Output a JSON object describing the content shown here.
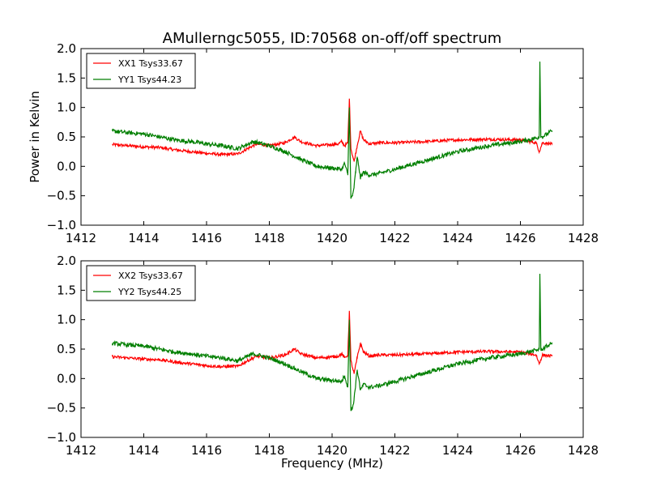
{
  "title": "AMullerngc5055, ID:70568 on-off/off spectrum",
  "colors": {
    "xx": "#ff0000",
    "yy": "#007f00"
  },
  "chart_data": [
    {
      "type": "line",
      "ylabel": "Power in Kelvin",
      "xlabel": "",
      "xlim": [
        1412,
        1428
      ],
      "ylim": [
        -1.0,
        2.0
      ],
      "xticks": [
        "1412",
        "1414",
        "1416",
        "1418",
        "1420",
        "1422",
        "1424",
        "1426",
        "1428"
      ],
      "yticks": [
        "2.0",
        "1.5",
        "1.0",
        "0.5",
        "0.0",
        "−0.5",
        "−1.0"
      ],
      "legend_position": "top-left",
      "series": [
        {
          "name": "XX1 Tsys33.67",
          "color": "#ff0000",
          "x": [
            1413.0,
            1413.5,
            1414.0,
            1414.5,
            1415.0,
            1415.5,
            1416.0,
            1416.5,
            1417.0,
            1417.3,
            1417.6,
            1418.0,
            1418.5,
            1418.8,
            1419.0,
            1419.5,
            1420.0,
            1420.2,
            1420.3,
            1420.4,
            1420.5,
            1420.55,
            1420.6,
            1420.7,
            1420.8,
            1420.9,
            1421.0,
            1421.2,
            1421.5,
            1422.0,
            1423.0,
            1424.0,
            1425.0,
            1426.0,
            1426.5,
            1426.6,
            1426.7,
            1427.0
          ],
          "y": [
            0.37,
            0.35,
            0.33,
            0.32,
            0.28,
            0.25,
            0.22,
            0.2,
            0.21,
            0.3,
            0.38,
            0.35,
            0.4,
            0.5,
            0.42,
            0.35,
            0.37,
            0.38,
            0.42,
            0.35,
            0.4,
            1.15,
            0.3,
            0.08,
            0.35,
            0.6,
            0.45,
            0.38,
            0.4,
            0.4,
            0.42,
            0.45,
            0.46,
            0.45,
            0.4,
            0.25,
            0.4,
            0.38
          ]
        },
        {
          "name": "YY1 Tsys44.23",
          "color": "#007f00",
          "x": [
            1413.0,
            1413.5,
            1414.0,
            1414.5,
            1415.0,
            1415.5,
            1416.0,
            1416.5,
            1417.0,
            1417.2,
            1417.5,
            1418.0,
            1418.5,
            1419.0,
            1419.5,
            1420.0,
            1420.3,
            1420.4,
            1420.5,
            1420.55,
            1420.6,
            1420.65,
            1420.7,
            1420.75,
            1420.8,
            1420.85,
            1420.9,
            1421.0,
            1421.2,
            1421.5,
            1422.0,
            1423.0,
            1424.0,
            1425.0,
            1426.0,
            1426.5,
            1426.6,
            1426.62,
            1426.65,
            1426.7,
            1427.0
          ],
          "y": [
            0.6,
            0.57,
            0.55,
            0.5,
            0.45,
            0.42,
            0.38,
            0.35,
            0.3,
            0.35,
            0.42,
            0.35,
            0.25,
            0.12,
            0.0,
            -0.03,
            -0.05,
            0.05,
            -0.15,
            1.0,
            -0.55,
            -0.5,
            -0.35,
            -0.1,
            0.15,
            0.0,
            -0.2,
            -0.1,
            -0.15,
            -0.12,
            -0.05,
            0.1,
            0.25,
            0.35,
            0.42,
            0.48,
            0.5,
            1.78,
            0.5,
            0.5,
            0.6
          ]
        }
      ]
    },
    {
      "type": "line",
      "ylabel": "",
      "xlabel": "Frequency (MHz)",
      "xlim": [
        1412,
        1428
      ],
      "ylim": [
        -1.0,
        2.0
      ],
      "xticks": [
        "1412",
        "1414",
        "1416",
        "1418",
        "1420",
        "1422",
        "1424",
        "1426",
        "1428"
      ],
      "yticks": [
        "2.0",
        "1.5",
        "1.0",
        "0.5",
        "0.0",
        "−0.5",
        "−1.0"
      ],
      "legend_position": "top-left",
      "series": [
        {
          "name": "XX2 Tsys33.67",
          "color": "#ff0000",
          "x": [
            1413.0,
            1413.5,
            1414.0,
            1414.5,
            1415.0,
            1415.5,
            1416.0,
            1416.5,
            1417.0,
            1417.3,
            1417.6,
            1418.0,
            1418.5,
            1418.8,
            1419.0,
            1419.5,
            1420.0,
            1420.2,
            1420.3,
            1420.4,
            1420.5,
            1420.55,
            1420.6,
            1420.7,
            1420.8,
            1420.9,
            1421.0,
            1421.2,
            1421.5,
            1422.0,
            1423.0,
            1424.0,
            1425.0,
            1426.0,
            1426.5,
            1426.6,
            1426.7,
            1427.0
          ],
          "y": [
            0.37,
            0.35,
            0.33,
            0.32,
            0.28,
            0.25,
            0.22,
            0.2,
            0.21,
            0.3,
            0.38,
            0.35,
            0.4,
            0.5,
            0.42,
            0.35,
            0.37,
            0.38,
            0.42,
            0.35,
            0.4,
            1.15,
            0.3,
            0.08,
            0.35,
            0.6,
            0.45,
            0.38,
            0.4,
            0.4,
            0.42,
            0.45,
            0.46,
            0.45,
            0.4,
            0.25,
            0.4,
            0.38
          ]
        },
        {
          "name": "YY2 Tsys44.25",
          "color": "#007f00",
          "x": [
            1413.0,
            1413.5,
            1414.0,
            1414.5,
            1415.0,
            1415.5,
            1416.0,
            1416.5,
            1417.0,
            1417.2,
            1417.5,
            1418.0,
            1418.5,
            1419.0,
            1419.5,
            1420.0,
            1420.3,
            1420.4,
            1420.5,
            1420.55,
            1420.6,
            1420.65,
            1420.7,
            1420.75,
            1420.8,
            1420.85,
            1420.9,
            1421.0,
            1421.2,
            1421.5,
            1422.0,
            1423.0,
            1424.0,
            1425.0,
            1426.0,
            1426.5,
            1426.6,
            1426.62,
            1426.65,
            1426.7,
            1427.0
          ],
          "y": [
            0.6,
            0.57,
            0.55,
            0.5,
            0.45,
            0.42,
            0.38,
            0.35,
            0.3,
            0.35,
            0.42,
            0.35,
            0.25,
            0.12,
            0.0,
            -0.03,
            -0.05,
            0.05,
            -0.15,
            1.0,
            -0.55,
            -0.5,
            -0.35,
            -0.1,
            0.15,
            0.0,
            -0.2,
            -0.1,
            -0.15,
            -0.12,
            -0.05,
            0.1,
            0.25,
            0.35,
            0.42,
            0.48,
            0.5,
            1.78,
            0.5,
            0.5,
            0.6
          ]
        }
      ]
    }
  ]
}
